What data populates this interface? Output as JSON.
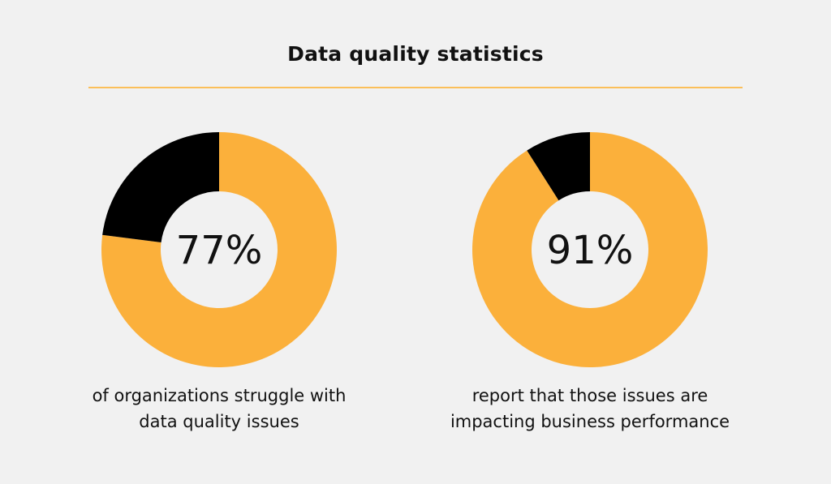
{
  "title": "Data quality statistics",
  "colors": {
    "background": "#f1f1f1",
    "accent": "#fbb03b",
    "remainder": "#000000",
    "rule": "#fbbf5a"
  },
  "chart_data": [
    {
      "type": "pie",
      "variant": "donut",
      "values": [
        77,
        23
      ],
      "center_label": "77%",
      "caption": "of organizations struggle with data quality issues"
    },
    {
      "type": "pie",
      "variant": "donut",
      "values": [
        91,
        9
      ],
      "center_label": "91%",
      "caption": "report that those issues are impacting business performance"
    }
  ]
}
